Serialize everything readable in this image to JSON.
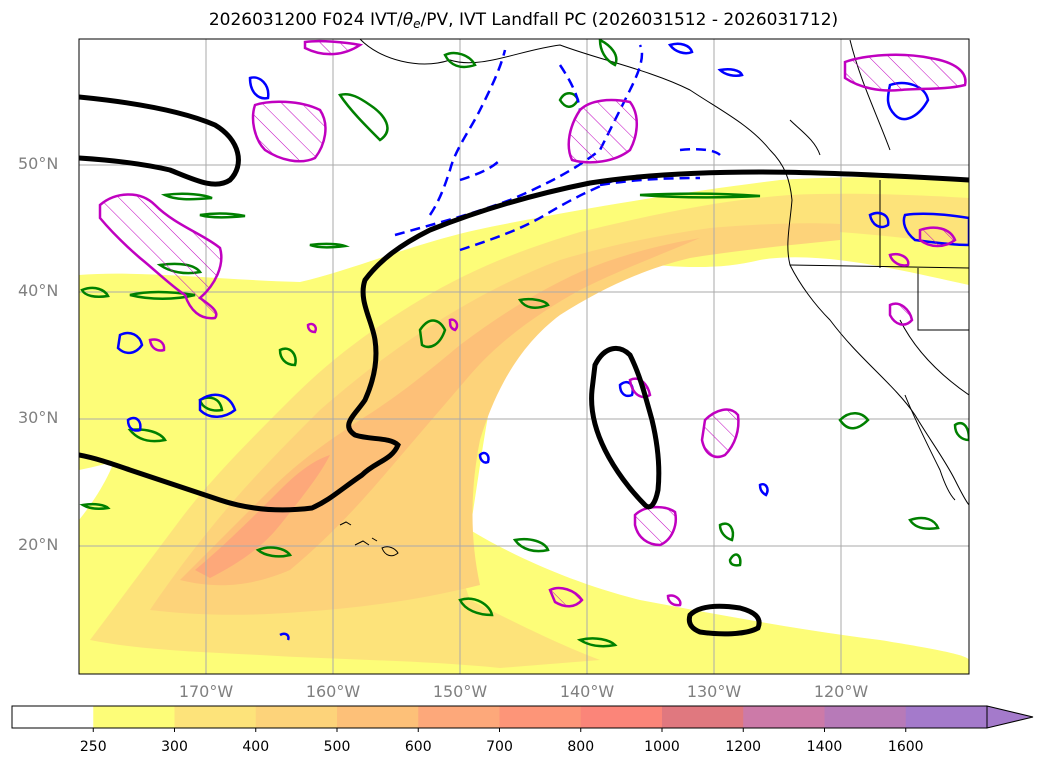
{
  "title": {
    "prefix": "2026031200 F024 IVT/",
    "theta": "θ",
    "theta_sub": "e",
    "suffix": "/PV, IVT Landfall PC (2026031512 - 2026031712)"
  },
  "axes": {
    "lat_labels": [
      "50°N",
      "40°N",
      "30°N",
      "20°N"
    ],
    "lon_labels": [
      "170°W",
      "160°W",
      "150°W",
      "140°W",
      "130°W",
      "120°W"
    ]
  },
  "colorbar": {
    "levels": [
      "250",
      "300",
      "400",
      "500",
      "600",
      "700",
      "800",
      "1000",
      "1200",
      "1400",
      "1600"
    ],
    "colors": [
      "#ffffff",
      "#fdfd78",
      "#fde37a",
      "#fdd37a",
      "#fdc078",
      "#fda87a",
      "#fd9578",
      "#fb8579",
      "#e0787f",
      "#cc7aa8",
      "#b77ab8",
      "#a47acb"
    ]
  },
  "legend_colors": {
    "pv_positive": "#0000ff",
    "theta_e": "#008000",
    "pv_alt": "#c000c0",
    "ivt_pc": "#000000"
  }
}
